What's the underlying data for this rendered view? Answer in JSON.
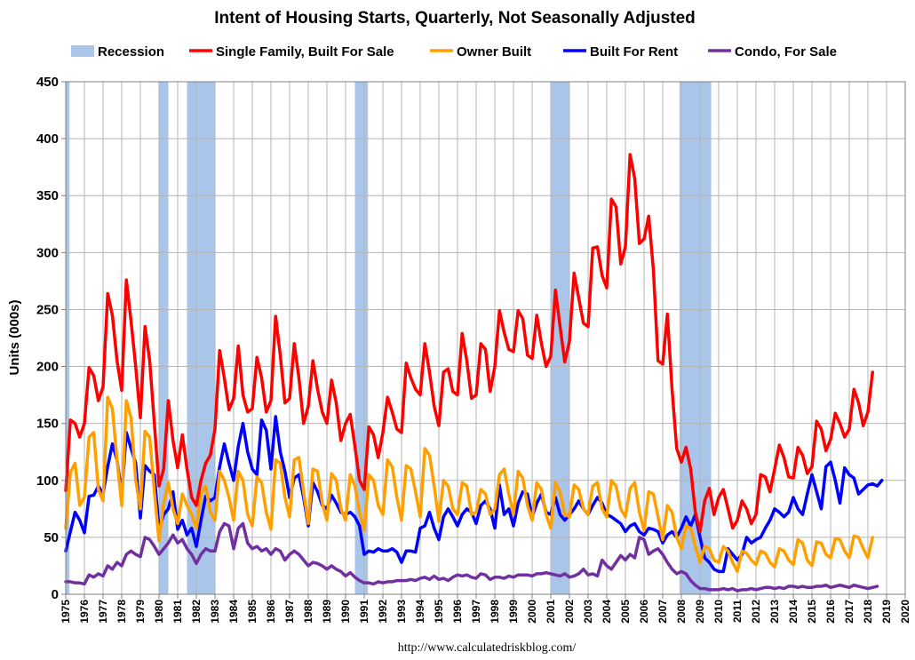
{
  "chart_data": {
    "type": "line",
    "title": "Intent of Housing Starts, Quarterly, Not Seasonally Adjusted",
    "ylabel": "Units  (000s)",
    "xlabel": "",
    "source": "http://www.calculatedriskblog.com/",
    "ylim": [
      0,
      450
    ],
    "yticks": [
      "0",
      "50",
      "100",
      "150",
      "200",
      "250",
      "300",
      "350",
      "400",
      "450"
    ],
    "xlim": [
      1975,
      2020
    ],
    "xticks": [
      "1975",
      "1976",
      "1977",
      "1978",
      "1979",
      "1980",
      "1981",
      "1982",
      "1983",
      "1984",
      "1985",
      "1986",
      "1987",
      "1988",
      "1989",
      "1990",
      "1991",
      "1992",
      "1993",
      "1994",
      "1995",
      "1996",
      "1997",
      "1998",
      "1999",
      "2000",
      "2001",
      "2002",
      "2003",
      "2004",
      "2005",
      "2006",
      "2007",
      "2008",
      "2009",
      "2010",
      "2011",
      "2012",
      "2013",
      "2014",
      "2015",
      "2016",
      "2017",
      "2018",
      "2019",
      "2020"
    ],
    "grid": true,
    "legend_position": "top",
    "recession_label": "Recession",
    "recession_color": "#a9c6ea",
    "recessions": [
      [
        1975.0,
        1975.2
      ],
      [
        1980.0,
        1980.5
      ],
      [
        1981.5,
        1983.0
      ],
      [
        1990.5,
        1991.2
      ],
      [
        2001.0,
        2002.0
      ],
      [
        2007.9,
        2009.6
      ]
    ],
    "x_start": 1975.0,
    "x_step": 0.25,
    "series": [
      {
        "name": "Single Family, Built For Sale",
        "color": "#ff0000",
        "values": [
          91,
          153,
          150,
          138,
          150,
          199,
          192,
          170,
          182,
          264,
          245,
          205,
          179,
          276,
          240,
          200,
          155,
          235,
          205,
          150,
          95,
          110,
          170,
          135,
          111,
          140,
          110,
          85,
          78,
          100,
          115,
          122,
          145,
          214,
          190,
          162,
          172,
          218,
          175,
          160,
          163,
          208,
          190,
          160,
          170,
          244,
          210,
          168,
          172,
          220,
          190,
          150,
          165,
          205,
          180,
          160,
          150,
          188,
          168,
          135,
          150,
          158,
          130,
          100,
          92,
          147,
          140,
          120,
          142,
          173,
          160,
          145,
          142,
          203,
          190,
          180,
          175,
          220,
          195,
          165,
          148,
          195,
          198,
          178,
          175,
          229,
          205,
          172,
          175,
          220,
          215,
          178,
          200,
          249,
          230,
          215,
          213,
          249,
          242,
          210,
          207,
          245,
          220,
          200,
          209,
          267,
          235,
          204,
          222,
          282,
          260,
          238,
          235,
          304,
          305,
          280,
          269,
          347,
          340,
          290,
          305,
          386,
          365,
          308,
          312,
          332,
          285,
          205,
          202,
          246,
          180,
          128,
          116,
          129,
          110,
          72,
          55,
          82,
          93,
          70,
          85,
          92,
          75,
          58,
          65,
          82,
          75,
          62,
          70,
          105,
          103,
          90,
          110,
          131,
          120,
          103,
          102,
          129,
          122,
          106,
          112,
          152,
          145,
          126,
          136,
          159,
          150,
          138,
          145,
          180,
          168,
          148,
          160,
          195
        ]
      },
      {
        "name": "Owner Built",
        "color": "#ffa000",
        "values": [
          58,
          107,
          115,
          78,
          85,
          138,
          142,
          92,
          82,
          173,
          163,
          118,
          78,
          170,
          155,
          100,
          75,
          143,
          138,
          90,
          47,
          80,
          98,
          75,
          62,
          88,
          78,
          70,
          58,
          88,
          95,
          72,
          65,
          108,
          100,
          85,
          65,
          108,
          100,
          70,
          60,
          103,
          98,
          72,
          57,
          118,
          115,
          85,
          68,
          118,
          120,
          90,
          62,
          110,
          108,
          80,
          65,
          106,
          100,
          75,
          65,
          105,
          95,
          72,
          56,
          105,
          100,
          78,
          70,
          118,
          112,
          85,
          65,
          113,
          110,
          90,
          68,
          128,
          122,
          95,
          64,
          100,
          95,
          75,
          70,
          98,
          95,
          70,
          72,
          92,
          88,
          70,
          75,
          105,
          110,
          88,
          70,
          108,
          102,
          78,
          65,
          98,
          92,
          70,
          58,
          98,
          90,
          70,
          68,
          96,
          92,
          75,
          70,
          95,
          98,
          75,
          68,
          100,
          95,
          75,
          68,
          93,
          98,
          72,
          56,
          90,
          88,
          68,
          48,
          78,
          72,
          50,
          40,
          60,
          58,
          42,
          28,
          42,
          40,
          30,
          28,
          42,
          38,
          28,
          20,
          38,
          36,
          30,
          26,
          38,
          36,
          28,
          24,
          40,
          38,
          30,
          26,
          48,
          45,
          30,
          25,
          46,
          45,
          35,
          32,
          49,
          48,
          38,
          32,
          51,
          50,
          40,
          32,
          50
        ]
      },
      {
        "name": "Built For Rent",
        "color": "#0000ff",
        "values": [
          38,
          55,
          72,
          65,
          54,
          86,
          87,
          95,
          88,
          112,
          132,
          118,
          88,
          142,
          128,
          115,
          67,
          113,
          108,
          105,
          57,
          70,
          75,
          90,
          57,
          65,
          52,
          58,
          42,
          65,
          86,
          82,
          85,
          112,
          132,
          115,
          100,
          130,
          150,
          125,
          110,
          105,
          153,
          144,
          110,
          156,
          125,
          108,
          85,
          102,
          105,
          85,
          60,
          98,
          90,
          78,
          75,
          87,
          80,
          72,
          70,
          72,
          68,
          60,
          35,
          38,
          37,
          40,
          38,
          38,
          40,
          37,
          28,
          38,
          38,
          37,
          58,
          60,
          72,
          58,
          48,
          68,
          75,
          68,
          60,
          70,
          75,
          72,
          62,
          78,
          82,
          75,
          58,
          96,
          70,
          75,
          60,
          80,
          90,
          88,
          68,
          80,
          88,
          72,
          70,
          85,
          70,
          65,
          70,
          75,
          82,
          75,
          70,
          78,
          85,
          80,
          70,
          68,
          65,
          62,
          55,
          60,
          62,
          55,
          52,
          58,
          57,
          55,
          45,
          52,
          55,
          50,
          58,
          68,
          60,
          70,
          50,
          32,
          28,
          22,
          20,
          20,
          40,
          35,
          30,
          35,
          50,
          45,
          48,
          50,
          58,
          65,
          75,
          72,
          68,
          72,
          85,
          75,
          70,
          88,
          105,
          90,
          75,
          112,
          116,
          100,
          80,
          111,
          105,
          102,
          88,
          92,
          96,
          97,
          95,
          100
        ]
      },
      {
        "name": "Condo, For Sale",
        "color": "#7030a0",
        "values": [
          11,
          11,
          10,
          10,
          9,
          17,
          15,
          18,
          16,
          25,
          22,
          28,
          25,
          35,
          38,
          35,
          33,
          50,
          48,
          42,
          35,
          40,
          45,
          52,
          45,
          48,
          40,
          35,
          27,
          35,
          40,
          38,
          38,
          55,
          62,
          60,
          40,
          58,
          62,
          45,
          40,
          42,
          38,
          40,
          35,
          40,
          38,
          30,
          35,
          38,
          35,
          30,
          25,
          28,
          27,
          25,
          22,
          25,
          22,
          20,
          16,
          19,
          15,
          12,
          10,
          10,
          9,
          11,
          10,
          11,
          11,
          12,
          12,
          12,
          13,
          12,
          14,
          15,
          13,
          16,
          13,
          14,
          12,
          15,
          17,
          16,
          17,
          15,
          14,
          18,
          17,
          13,
          15,
          15,
          14,
          16,
          15,
          17,
          17,
          17,
          16,
          18,
          18,
          19,
          18,
          17,
          16,
          18,
          15,
          16,
          18,
          22,
          17,
          18,
          16,
          30,
          25,
          22,
          28,
          34,
          30,
          35,
          32,
          50,
          48,
          35,
          38,
          40,
          35,
          28,
          22,
          18,
          20,
          18,
          12,
          8,
          5,
          5,
          4,
          4,
          4,
          5,
          4,
          5,
          3,
          4,
          4,
          5,
          4,
          5,
          6,
          6,
          5,
          6,
          5,
          7,
          7,
          6,
          7,
          6,
          6,
          7,
          7,
          8,
          6,
          7,
          8,
          7,
          6,
          8,
          7,
          6,
          5,
          6,
          7
        ]
      }
    ]
  }
}
